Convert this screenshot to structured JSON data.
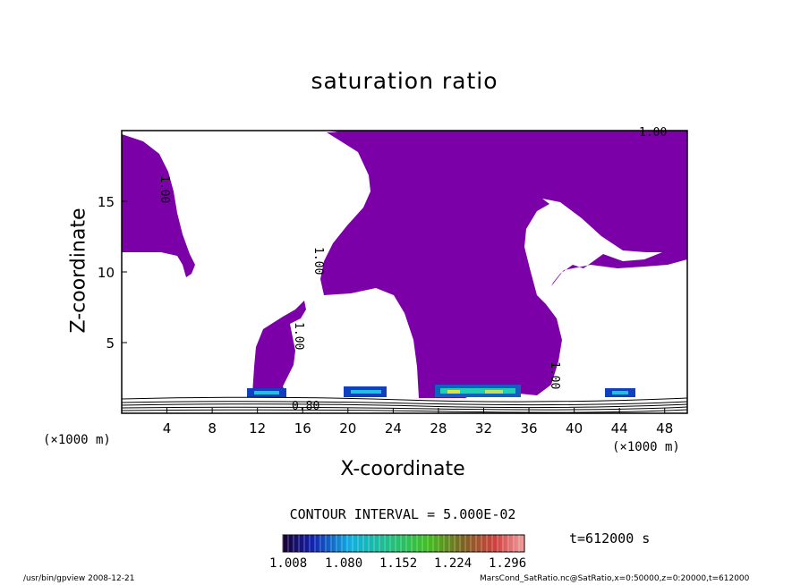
{
  "chart_data": {
    "type": "heatmap",
    "title": "saturation ratio",
    "xlabel": "X-coordinate",
    "ylabel": "Z-coordinate",
    "x_unit": "(×1000 m)",
    "y_unit": "(×1000 m)",
    "xlim": [
      0,
      50
    ],
    "ylim": [
      0,
      20
    ],
    "x_ticks": [
      "4",
      "8",
      "12",
      "16",
      "20",
      "24",
      "28",
      "32",
      "36",
      "40",
      "44",
      "48"
    ],
    "y_ticks": [
      "5",
      "10",
      "15"
    ],
    "contour_interval": "CONTOUR INTERVAL = 5.000E-02",
    "contour_labels": [
      "1.00",
      "1.00",
      "1.00",
      "1.00",
      "1.00",
      "0.80"
    ],
    "time_label": "t=612000 s",
    "colorbar": {
      "ticks": [
        "1.008",
        "1.080",
        "1.152",
        "1.224",
        "1.296"
      ],
      "min": 1.008,
      "max": 1.296
    },
    "fill_color": "#7b00a8"
  },
  "footer": {
    "left": "/usr/bin/gpview   2008-12-21",
    "right": "MarsCond_SatRatio.nc@SatRatio,x=0:50000,z=0:20000,t=612000"
  }
}
